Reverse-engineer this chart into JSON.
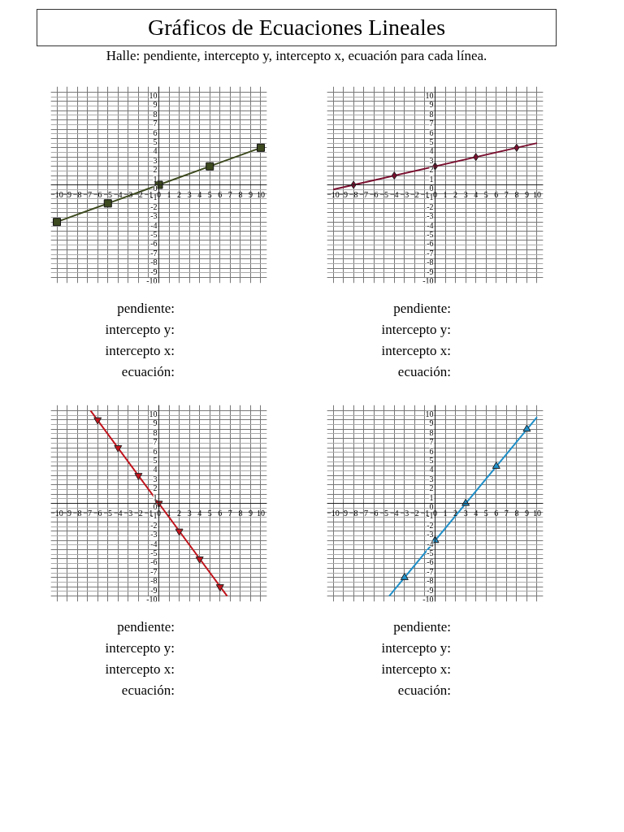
{
  "chart_data": [
    {
      "type": "line",
      "title": "Gráficos de Ecuaciones Lineales",
      "subtitle": "Halle: pendiente, intercepto y, intercepto x, ecuación para cada línea.",
      "xlim": [
        -10.6,
        10.6
      ],
      "ylim": [
        -10.6,
        10.6
      ],
      "xticks": [
        -10,
        -9,
        -8,
        -7,
        -6,
        -5,
        -4,
        -3,
        -2,
        -1,
        0,
        1,
        2,
        3,
        4,
        5,
        6,
        7,
        8,
        9,
        10
      ],
      "yticks": [
        -10,
        -9,
        -8,
        -7,
        -6,
        -5,
        -4,
        -3,
        -2,
        -1,
        0,
        1,
        2,
        3,
        4,
        5,
        6,
        7,
        8,
        9,
        10
      ],
      "grid": true,
      "series": [
        {
          "type": "line",
          "color": "#3d4a1f",
          "marker": "square",
          "x": [
            -10,
            -5,
            0,
            5,
            10
          ],
          "values": [
            -4,
            -2,
            0,
            2,
            4
          ]
        }
      ],
      "annotations": [
        "pendiente:",
        "intercepto y:",
        "intercepto x:",
        "ecuación:"
      ]
    },
    {
      "type": "line",
      "xlim": [
        -10.6,
        10.6
      ],
      "ylim": [
        -10.6,
        10.6
      ],
      "xticks": [
        -10,
        -9,
        -8,
        -7,
        -6,
        -5,
        -4,
        -3,
        -2,
        -1,
        0,
        1,
        2,
        3,
        4,
        5,
        6,
        7,
        8,
        9,
        10
      ],
      "yticks": [
        -10,
        -9,
        -8,
        -7,
        -6,
        -5,
        -4,
        -3,
        -2,
        -1,
        0,
        1,
        2,
        3,
        4,
        5,
        6,
        7,
        8,
        9,
        10
      ],
      "grid": true,
      "series": [
        {
          "type": "line",
          "color": "#7a1030",
          "marker": "none",
          "x": [
            -10,
            10
          ],
          "values": [
            -0.5,
            4.5
          ]
        },
        {
          "type": "scatter",
          "color": "#7a1030",
          "marker": "diamond",
          "x": [
            -8,
            -4,
            0,
            4,
            8
          ],
          "values": [
            0,
            1,
            2,
            3,
            4
          ]
        }
      ],
      "annotations": [
        "pendiente:",
        "intercepto y:",
        "intercepto x:",
        "ecuación:"
      ]
    },
    {
      "type": "line",
      "xlim": [
        -10.6,
        10.6
      ],
      "ylim": [
        -10.6,
        10.6
      ],
      "xticks": [
        -10,
        -9,
        -8,
        -7,
        -6,
        -5,
        -4,
        -3,
        -2,
        -1,
        0,
        1,
        2,
        3,
        4,
        5,
        6,
        7,
        8,
        9,
        10
      ],
      "yticks": [
        -10,
        -9,
        -8,
        -7,
        -6,
        -5,
        -4,
        -3,
        -2,
        -1,
        0,
        1,
        2,
        3,
        4,
        5,
        6,
        7,
        8,
        9,
        10
      ],
      "grid": true,
      "series": [
        {
          "type": "line",
          "color": "#c0141c",
          "marker": "none",
          "x": [
            -6.7,
            6.7
          ],
          "values": [
            10,
            -10
          ]
        },
        {
          "type": "scatter",
          "color": "#c0141c",
          "marker": "triangle-down",
          "x": [
            -6,
            -4,
            -2,
            0,
            2,
            4,
            6
          ],
          "values": [
            9,
            6,
            3,
            0,
            -3,
            -6,
            -9
          ]
        }
      ],
      "annotations": [
        "pendiente:",
        "intercepto y:",
        "intercepto x:",
        "ecuación:"
      ]
    },
    {
      "type": "line",
      "xlim": [
        -10.6,
        10.6
      ],
      "ylim": [
        -10.6,
        10.6
      ],
      "xticks": [
        -10,
        -9,
        -8,
        -7,
        -6,
        -5,
        -4,
        -3,
        -2,
        -1,
        0,
        1,
        2,
        3,
        4,
        5,
        6,
        7,
        8,
        9,
        10
      ],
      "yticks": [
        -10,
        -9,
        -8,
        -7,
        -6,
        -5,
        -4,
        -3,
        -2,
        -1,
        0,
        1,
        2,
        3,
        4,
        5,
        6,
        7,
        8,
        9,
        10
      ],
      "grid": true,
      "series": [
        {
          "type": "line",
          "color": "#1f8fc8",
          "marker": "none",
          "x": [
            -4.5,
            10
          ],
          "values": [
            -10,
            9.3
          ]
        },
        {
          "type": "scatter",
          "color": "#1f8fc8",
          "marker": "triangle",
          "x": [
            -3,
            0,
            3,
            6,
            9
          ],
          "values": [
            -8,
            -4,
            0,
            4,
            8
          ]
        }
      ],
      "annotations": [
        "pendiente:",
        "intercepto y:",
        "intercepto x:",
        "ecuación:"
      ]
    }
  ]
}
